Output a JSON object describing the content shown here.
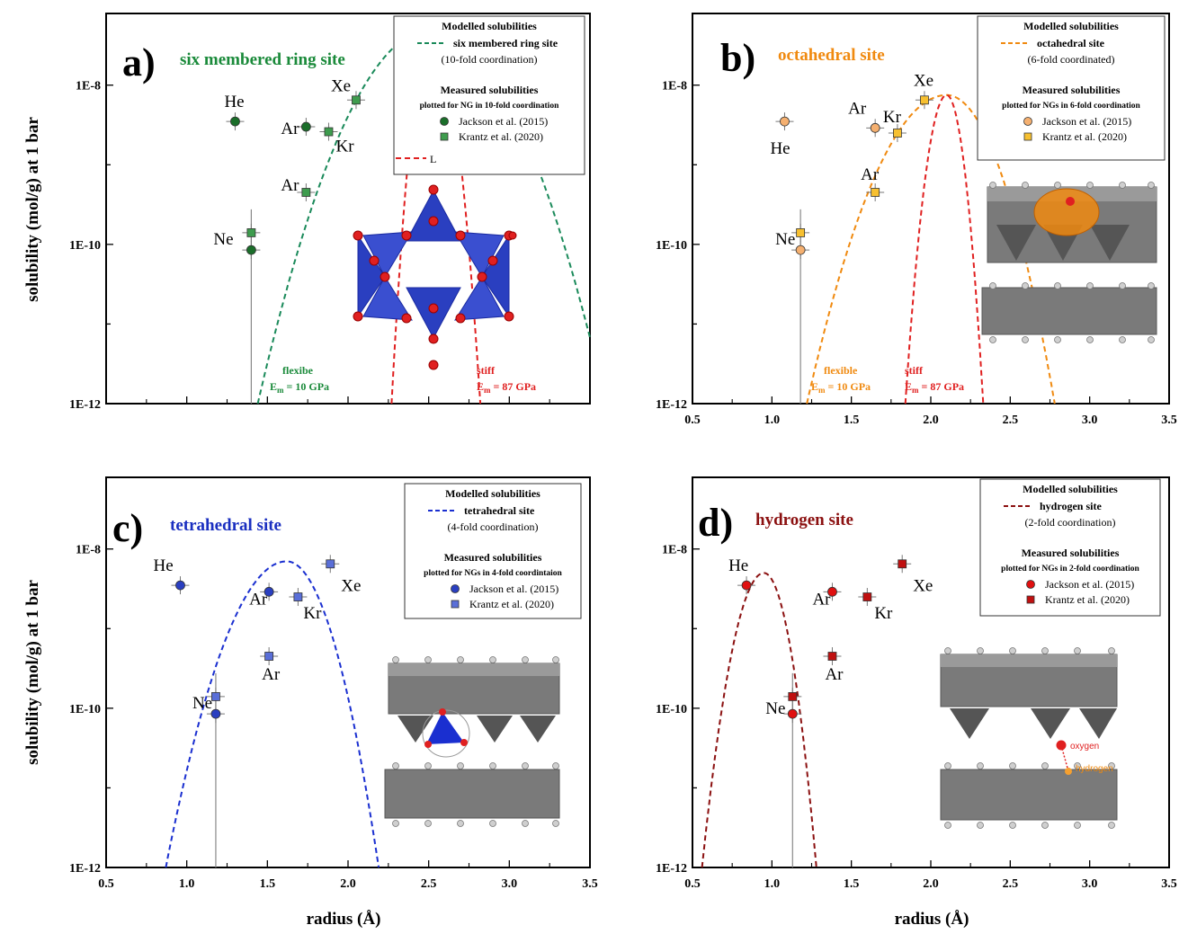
{
  "shared": {
    "ylabel": "solubility (mol/g) at 1 bar",
    "xlabel": "radius (Å)",
    "y_ticks": [
      "1E-12",
      "1E-10",
      "1E-8"
    ],
    "x_ticks": [
      "0.5",
      "1.0",
      "1.5",
      "2.0",
      "2.5",
      "3.0",
      "3.5"
    ],
    "legend_modelled_heading": "Modelled solubilities",
    "legend_measured_heading": "Measured solubilities",
    "jackson_label": "Jackson et al. (2015)",
    "krantz_label": "Krantz et al. (2020)"
  },
  "chart_data": [
    {
      "type": "scatter",
      "panel": "a)",
      "title": "six membered ring site",
      "xlim": [
        0.5,
        3.5
      ],
      "ylim_log10": [
        -12,
        -7.1
      ],
      "y_scale": "log",
      "x_ticks_visible": false,
      "title_color": "#1a8a3a",
      "legend": {
        "model_line": "six membered ring site",
        "coordination": "(10-fold coordination)",
        "measured_note": "plotted for NG in 10-fold coordination",
        "extra_line": "L"
      },
      "series": [
        {
          "name": "Jackson et al. (2015)",
          "marker": "circle",
          "color": "#1b6e2a",
          "points": [
            {
              "x": 1.3,
              "y": 3.5e-09,
              "label": "He"
            },
            {
              "x": 1.4,
              "y": 8.5e-11,
              "label": "Ne"
            },
            {
              "x": 1.74,
              "y": 3e-09,
              "label": "Ar"
            }
          ]
        },
        {
          "name": "Krantz et al. (2020)",
          "marker": "square",
          "color": "#3e9c4e",
          "points": [
            {
              "x": 1.4,
              "y": 1.4e-10
            },
            {
              "x": 1.74,
              "y": 4.5e-10,
              "label": "Ar"
            },
            {
              "x": 1.88,
              "y": 2.6e-09,
              "label": "Kr"
            },
            {
              "x": 2.05,
              "y": 6.5e-09,
              "label": "Xe"
            }
          ]
        }
      ],
      "curves": [
        {
          "name": "flexibe",
          "color": "#1a8a5a",
          "peak_x": 2.52,
          "peak_y": 5e-08,
          "zero_left": 1.44,
          "zero_right": 3.6
        },
        {
          "name": "stiff",
          "color": "#e02020",
          "peak_x": 2.52,
          "peak_y": 5e-08,
          "zero_left": 2.27,
          "zero_right": 2.82
        }
      ],
      "notes": [
        {
          "text1": "flexibe",
          "text2": "= 10 GPa",
          "color": "#1a8a3a"
        },
        {
          "text1": "stiff",
          "text2": "= 87 GPa",
          "color": "#e02020"
        }
      ]
    },
    {
      "type": "scatter",
      "panel": "b)",
      "title": "octahedral site",
      "xlim": [
        0.5,
        3.5
      ],
      "ylim_log10": [
        -12,
        -7.1
      ],
      "y_scale": "log",
      "title_color": "#f08a10",
      "legend": {
        "model_line": "octahedral site",
        "coordination": "(6-fold coordinated)",
        "measured_note": "plotted for NGs in 6-fold coordination"
      },
      "series": [
        {
          "name": "Jackson et al. (2015)",
          "marker": "circle",
          "color": "#f5b070",
          "points": [
            {
              "x": 1.08,
              "y": 3.5e-09,
              "label": "He"
            },
            {
              "x": 1.18,
              "y": 8.5e-11,
              "label": "Ne"
            },
            {
              "x": 1.65,
              "y": 2.9e-09,
              "label": "Ar"
            }
          ]
        },
        {
          "name": "Krantz et al. (2020)",
          "marker": "square",
          "color": "#f7c030",
          "points": [
            {
              "x": 1.18,
              "y": 1.4e-10
            },
            {
              "x": 1.65,
              "y": 4.5e-10,
              "label": "Ar"
            },
            {
              "x": 1.79,
              "y": 2.5e-09,
              "label": "Kr"
            },
            {
              "x": 1.96,
              "y": 6.5e-09,
              "label": "Xe"
            }
          ]
        }
      ],
      "curves": [
        {
          "name": "flexible",
          "color": "#f08a10",
          "peak_x": 2.1,
          "peak_y": 7.5e-09,
          "zero_left": 1.22,
          "zero_right": 2.78
        },
        {
          "name": "stiff",
          "color": "#e02020",
          "peak_x": 2.1,
          "peak_y": 7.5e-09,
          "zero_left": 1.84,
          "zero_right": 2.33
        }
      ],
      "notes": [
        {
          "text1": "flexible",
          "text2": "= 10 GPa",
          "color": "#f08a10"
        },
        {
          "text1": "stiff",
          "text2": "= 87 GPa",
          "color": "#e02020"
        }
      ]
    },
    {
      "type": "scatter",
      "panel": "c)",
      "title": "tetrahedral site",
      "xlim": [
        0.5,
        3.5
      ],
      "ylim_log10": [
        -12,
        -7.1
      ],
      "y_scale": "log",
      "title_color": "#1a2fc0",
      "legend": {
        "model_line": "tetrahedral site",
        "coordination": "(4-fold coordination)",
        "measured_note": "plotted for NGs in 4-fold coordintaion"
      },
      "series": [
        {
          "name": "Jackson et al. (2015)",
          "marker": "circle",
          "color": "#2a3fc0",
          "points": [
            {
              "x": 0.96,
              "y": 3.5e-09,
              "label": "He"
            },
            {
              "x": 1.18,
              "y": 8.5e-11,
              "label": "Ne"
            },
            {
              "x": 1.51,
              "y": 2.9e-09,
              "label": "Ar"
            }
          ]
        },
        {
          "name": "Krantz et al. (2020)",
          "marker": "square",
          "color": "#5a6fd8",
          "points": [
            {
              "x": 1.18,
              "y": 1.4e-10
            },
            {
              "x": 1.51,
              "y": 4.5e-10,
              "label": "Ar"
            },
            {
              "x": 1.69,
              "y": 2.5e-09,
              "label": "Kr"
            },
            {
              "x": 1.89,
              "y": 6.5e-09,
              "label": "Xe"
            }
          ]
        }
      ],
      "curves": [
        {
          "name": "tetrahedral site",
          "color": "#1a2fd0",
          "peak_x": 1.62,
          "peak_y": 7e-09,
          "zero_left": 0.87,
          "zero_right": 2.19
        }
      ]
    },
    {
      "type": "scatter",
      "panel": "d)",
      "title": "hydrogen site",
      "xlim": [
        0.5,
        3.5
      ],
      "ylim_log10": [
        -12,
        -7.1
      ],
      "y_scale": "log",
      "title_color": "#8b1010",
      "legend": {
        "model_line": "hydrogen site",
        "coordination": "(2-fold coordination)",
        "measured_note": "plotted for NGs in 2-fold coordination"
      },
      "series": [
        {
          "name": "Jackson et al. (2015)",
          "marker": "circle",
          "color": "#e01010",
          "points": [
            {
              "x": 0.84,
              "y": 3.5e-09,
              "label": "He"
            },
            {
              "x": 1.13,
              "y": 8.5e-11,
              "label": "Ne"
            },
            {
              "x": 1.38,
              "y": 2.9e-09,
              "label": "Ar"
            }
          ]
        },
        {
          "name": "Krantz et al. (2020)",
          "marker": "square",
          "color": "#c01010",
          "points": [
            {
              "x": 1.13,
              "y": 1.4e-10
            },
            {
              "x": 1.38,
              "y": 4.5e-10,
              "label": "Ar"
            },
            {
              "x": 1.6,
              "y": 2.5e-09,
              "label": "Kr"
            },
            {
              "x": 1.82,
              "y": 6.5e-09,
              "label": "Xe"
            }
          ]
        }
      ],
      "curves": [
        {
          "name": "hydrogen site",
          "color": "#8b1010",
          "peak_x": 0.95,
          "peak_y": 5e-09,
          "zero_left": 0.56,
          "zero_right": 1.28
        }
      ],
      "structure_labels": [
        "oxygen",
        "hydrogen"
      ]
    }
  ]
}
